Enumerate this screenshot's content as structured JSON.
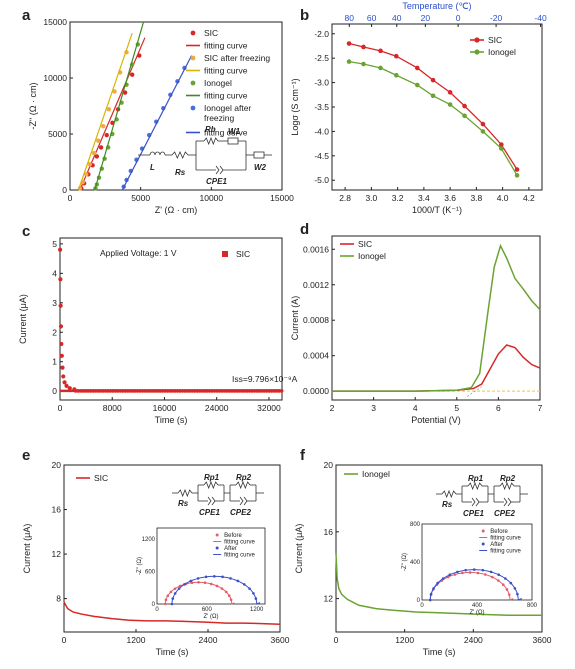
{
  "colors": {
    "red": "#d62828",
    "pink": "#e35d6a",
    "orange": "#f0a848",
    "yellow": "#d8b400",
    "green": "#6aa332",
    "darkgreen": "#3f8a22",
    "blue": "#4a6fd8",
    "navy": "#3950c8",
    "axis": "#222222",
    "dash": "#f0c24a"
  },
  "chart_data": [
    {
      "id": "a",
      "panel_label": "a",
      "type": "scatter",
      "xlabel": "Z' (Ω · cm)",
      "ylabel": "-Z\" (Ω · cm)",
      "xlim": [
        0,
        15000
      ],
      "ylim": [
        0,
        15000
      ],
      "x_ticks": [
        "0",
        "5000",
        "10000",
        "15000"
      ],
      "y_ticks": [
        "0",
        "5000",
        "10000",
        "15000"
      ],
      "legend": [
        "SIC",
        "fitting curve",
        "SIC after freezing",
        "fitting curve",
        "Ionogel",
        "fitting curve",
        "Ionogel after freezing",
        "fitting curve"
      ],
      "circuit_labels": [
        "L",
        "Rs",
        "Rb",
        "W1",
        "CPE1",
        "W2"
      ],
      "series": [
        {
          "name": "SIC",
          "role": "points",
          "color": "#d62828",
          "x": [
            800,
            1000,
            1300,
            1600,
            1900,
            2200,
            2600,
            3000,
            3400,
            3900,
            4400,
            4900
          ],
          "y": [
            150,
            600,
            1400,
            2200,
            3000,
            3800,
            4900,
            6000,
            7200,
            8700,
            10300,
            12000
          ]
        },
        {
          "name": "fitting curve",
          "role": "line",
          "color": "#d62828",
          "x": [
            700,
            5300
          ],
          "y": [
            0,
            13600
          ]
        },
        {
          "name": "SIC after freezing",
          "role": "points",
          "color": "#f0a848",
          "x": [
            700,
            900,
            1150,
            1400,
            1700,
            2000,
            2350,
            2750,
            3150,
            3550,
            4000
          ],
          "y": [
            150,
            700,
            1400,
            2300,
            3300,
            4400,
            5700,
            7200,
            8800,
            10500,
            12300
          ]
        },
        {
          "name": "fitting curve",
          "role": "line",
          "color": "#d8b400",
          "x": [
            600,
            4400
          ],
          "y": [
            0,
            14000
          ]
        },
        {
          "name": "Ionogel",
          "role": "points",
          "color": "#6aa332",
          "x": [
            1800,
            1900,
            2050,
            2250,
            2450,
            2700,
            3000,
            3300,
            3650,
            4000,
            4400,
            4800
          ],
          "y": [
            150,
            500,
            1100,
            1900,
            2800,
            3800,
            5000,
            6300,
            7800,
            9400,
            11200,
            13000
          ]
        },
        {
          "name": "fitting curve",
          "role": "line",
          "color": "#3f8a22",
          "x": [
            1750,
            5200
          ],
          "y": [
            0,
            15000
          ]
        },
        {
          "name": "Ionogel after freezing",
          "role": "points",
          "color": "#4a6fd8",
          "x": [
            3800,
            4000,
            4300,
            4700,
            5100,
            5600,
            6100,
            6600,
            7100,
            7600,
            8100
          ],
          "y": [
            300,
            900,
            1700,
            2700,
            3700,
            4900,
            6100,
            7300,
            8500,
            9700,
            10900
          ]
        },
        {
          "name": "fitting curve",
          "role": "line",
          "color": "#3950c8",
          "x": [
            3700,
            8600
          ],
          "y": [
            0,
            12000
          ]
        }
      ]
    },
    {
      "id": "b",
      "panel_label": "b",
      "type": "line",
      "xlabel": "1000/T (K⁻¹)",
      "ylabel": "Logσ (S cm⁻¹)",
      "top_axis_label": "Temperature (℃)",
      "xlim": [
        2.7,
        4.3
      ],
      "ylim": [
        -5.2,
        -1.8
      ],
      "x_ticks": [
        "2.8",
        "3.0",
        "3.2",
        "3.4",
        "3.6",
        "3.8",
        "4.0",
        "4.2"
      ],
      "y_ticks": [
        "-2.0",
        "-2.5",
        "-3.0",
        "-3.5",
        "-4.0",
        "-4.5",
        "-5.0"
      ],
      "top_ticks": [
        "80",
        "60",
        "40",
        "20",
        "0",
        "-20",
        "-40"
      ],
      "legend": [
        "SIC",
        "Ionogel"
      ],
      "series": [
        {
          "name": "SIC",
          "color": "#d62828",
          "x": [
            2.83,
            2.94,
            3.07,
            3.19,
            3.35,
            3.47,
            3.6,
            3.71,
            3.85,
            3.99,
            4.11
          ],
          "y": [
            -2.2,
            -2.27,
            -2.35,
            -2.46,
            -2.7,
            -2.95,
            -3.2,
            -3.48,
            -3.85,
            -4.27,
            -4.78
          ]
        },
        {
          "name": "Ionogel",
          "color": "#6aa332",
          "x": [
            2.83,
            2.94,
            3.07,
            3.19,
            3.35,
            3.47,
            3.6,
            3.71,
            3.85,
            3.99,
            4.11
          ],
          "y": [
            -2.57,
            -2.62,
            -2.7,
            -2.85,
            -3.05,
            -3.27,
            -3.45,
            -3.68,
            -4.0,
            -4.35,
            -4.9
          ]
        }
      ]
    },
    {
      "id": "c",
      "panel_label": "c",
      "type": "scatter",
      "xlabel": "Time (s)",
      "ylabel": "Current (μA)",
      "xlim": [
        0,
        34000
      ],
      "ylim": [
        -0.3,
        5.2
      ],
      "x_ticks": [
        "0",
        "8000",
        "16000",
        "24000",
        "32000"
      ],
      "y_ticks": [
        "0",
        "1",
        "2",
        "3",
        "4",
        "5"
      ],
      "legend": [
        "SIC"
      ],
      "annotations": [
        "Applied Voltage: 1 V",
        "Iss=9.796×10⁻⁹A"
      ],
      "series": [
        {
          "name": "SIC",
          "color": "#d62828",
          "x": [
            20,
            60,
            100,
            150,
            200,
            280,
            380,
            500,
            700,
            1000,
            1500,
            2200
          ],
          "y": [
            4.8,
            3.8,
            2.9,
            2.2,
            1.6,
            1.2,
            0.8,
            0.5,
            0.3,
            0.18,
            0.1,
            0.06
          ],
          "baseline": 0.01
        }
      ]
    },
    {
      "id": "d",
      "panel_label": "d",
      "type": "line",
      "xlabel": "Potential (V)",
      "ylabel": "Current (A)",
      "xlim": [
        2,
        7
      ],
      "ylim": [
        -0.0001,
        0.00175
      ],
      "x_ticks": [
        "2",
        "3",
        "4",
        "5",
        "6",
        "7"
      ],
      "y_ticks": [
        "0.0000",
        "0.0004",
        "0.0008",
        "0.0012",
        "0.0016"
      ],
      "legend": [
        "SIC",
        "Ionogel"
      ],
      "series": [
        {
          "name": "SIC",
          "color": "#d62828",
          "x": [
            2.0,
            3.0,
            4.0,
            5.0,
            5.4,
            5.6,
            5.8,
            6.0,
            6.2,
            6.4,
            6.6,
            6.8,
            7.0
          ],
          "y": [
            0.0,
            0.0,
            0.0,
            1e-05,
            3e-05,
            8e-05,
            0.00025,
            0.00042,
            0.00052,
            0.00049,
            0.00038,
            0.0003,
            0.00026
          ]
        },
        {
          "name": "Ionogel",
          "color": "#6aa332",
          "x": [
            2.0,
            3.0,
            4.0,
            5.0,
            5.35,
            5.55,
            5.75,
            5.9,
            6.05,
            6.2,
            6.4,
            6.6,
            6.8,
            7.0
          ],
          "y": [
            0.0,
            0.0,
            0.0,
            1e-05,
            4e-05,
            0.0002,
            0.0009,
            0.0014,
            0.00164,
            0.0015,
            0.00127,
            0.00115,
            0.00102,
            0.00092
          ]
        }
      ]
    },
    {
      "id": "e",
      "panel_label": "e",
      "type": "line",
      "xlabel": "Time (s)",
      "ylabel": "Current (μA)",
      "xlim": [
        0,
        3600
      ],
      "ylim": [
        5,
        20
      ],
      "x_ticks": [
        "0",
        "1200",
        "2400",
        "3600"
      ],
      "y_ticks": [
        "8",
        "12",
        "16",
        "20"
      ],
      "legend": [
        "SIC"
      ],
      "circuit_labels": [
        "Rp1",
        "Rp2",
        "Rs",
        "CPE1",
        "CPE2"
      ],
      "series": [
        {
          "name": "SIC",
          "color": "#d62828",
          "x": [
            0,
            60,
            150,
            300,
            500,
            800,
            1100,
            1400,
            1700,
            2000,
            2300,
            2500,
            2700,
            3000,
            3300,
            3600
          ],
          "y": [
            7.7,
            7.1,
            6.8,
            6.6,
            6.4,
            6.2,
            6.05,
            6.0,
            6.0,
            5.95,
            5.9,
            5.85,
            5.8,
            5.8,
            5.75,
            5.7
          ]
        }
      ],
      "inset": {
        "xlabel": "Z' (Ω)",
        "ylabel": "-Z\" (Ω)",
        "xlim": [
          0,
          1300
        ],
        "ylim": [
          0,
          1400
        ],
        "x_ticks": [
          "0",
          "600",
          "1200"
        ],
        "y_ticks": [
          "0",
          "600",
          "1200"
        ],
        "legend": [
          "Before",
          "fitting curve",
          "After",
          "fitting curve"
        ],
        "series": [
          {
            "name": "Before",
            "color": "#e35d6a",
            "center": 500,
            "radius": 400
          },
          {
            "name": "After",
            "color": "#3950c8",
            "center": 690,
            "radius": 510
          }
        ]
      }
    },
    {
      "id": "f",
      "panel_label": "f",
      "type": "line",
      "xlabel": "Time (s)",
      "ylabel": "Current (μA)",
      "xlim": [
        0,
        3600
      ],
      "ylim": [
        10,
        20
      ],
      "x_ticks": [
        "0",
        "1200",
        "2400",
        "3600"
      ],
      "y_ticks": [
        "12",
        "16",
        "20"
      ],
      "legend": [
        "Ionogel"
      ],
      "circuit_labels": [
        "Rp1",
        "Rp2",
        "Rs",
        "CPE1",
        "CPE2"
      ],
      "series": [
        {
          "name": "Ionogel",
          "color": "#6aa332",
          "x": [
            0,
            20,
            50,
            100,
            200,
            400,
            700,
            1000,
            1400,
            1800,
            2200,
            2600,
            3000,
            3400,
            3600
          ],
          "y": [
            14.7,
            13.2,
            12.6,
            12.25,
            11.95,
            11.6,
            11.4,
            11.3,
            11.2,
            11.15,
            11.1,
            11.05,
            11.0,
            11.0,
            11.0
          ]
        }
      ],
      "inset": {
        "xlabel": "Z' (Ω)",
        "ylabel": "-Z\" (Ω)",
        "xlim": [
          0,
          800
        ],
        "ylim": [
          0,
          800
        ],
        "x_ticks": [
          "0",
          "400",
          "800"
        ],
        "y_ticks": [
          "0",
          "400",
          "800"
        ],
        "legend": [
          "Before",
          "fitting curve",
          "After",
          "fitting curve"
        ],
        "series": [
          {
            "name": "Before",
            "color": "#e35d6a",
            "center": 350,
            "radius": 290
          },
          {
            "name": "After",
            "color": "#3950c8",
            "center": 380,
            "radius": 320
          }
        ]
      }
    }
  ]
}
